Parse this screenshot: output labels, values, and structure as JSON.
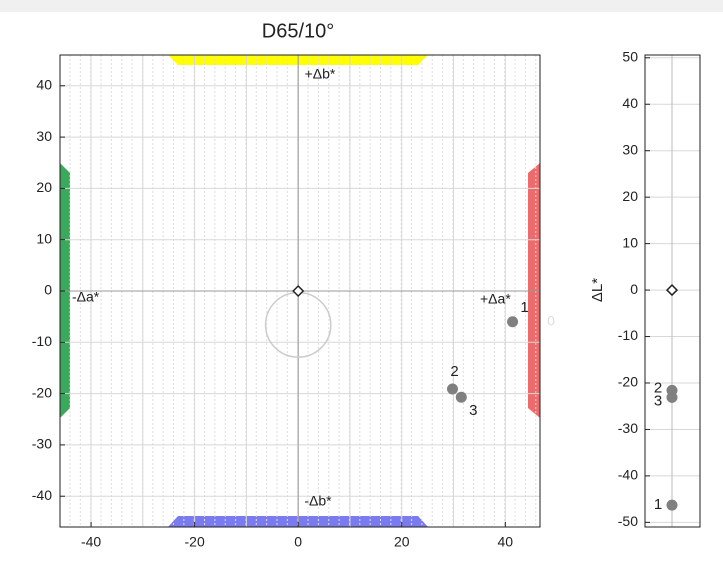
{
  "chart_data": [
    {
      "type": "scatter",
      "title": "D65/10°",
      "x": [
        41.4,
        29.8,
        31.5
      ],
      "values": [
        -6,
        -19.1,
        -20.7
      ],
      "point_labels": [
        "1",
        "2",
        "3"
      ],
      "color": "#808080",
      "origin_marker": {
        "x": 0,
        "y": 0
      },
      "circle": {
        "x": 0,
        "y": -6.6,
        "r": 6.3
      },
      "xlim": [
        -46,
        46.7
      ],
      "ylim": [
        -46,
        46
      ],
      "xticks": [
        -40,
        -20,
        0,
        20,
        40
      ],
      "yticks": [
        -40,
        -30,
        -20,
        -10,
        0,
        10,
        20,
        30,
        40
      ],
      "xgrid": [
        -40,
        -30,
        -20,
        -10,
        0,
        10,
        20,
        30,
        40
      ],
      "grid": true,
      "annotations": [
        "+Δb*",
        "-Δb*",
        "-Δa*",
        "+Δa*",
        "0"
      ]
    },
    {
      "type": "strip",
      "ylabel": "ΔL*",
      "values": [
        -46.3,
        -21.6,
        -23.1
      ],
      "point_labels": [
        "1",
        "2",
        "3"
      ],
      "color": "#808080",
      "origin_marker": {
        "y": 0
      },
      "ylim": [
        -51,
        50.6
      ],
      "yticks": [
        -50,
        -40,
        -30,
        -20,
        -10,
        0,
        10,
        20,
        30,
        40,
        50
      ],
      "grid": true
    }
  ]
}
